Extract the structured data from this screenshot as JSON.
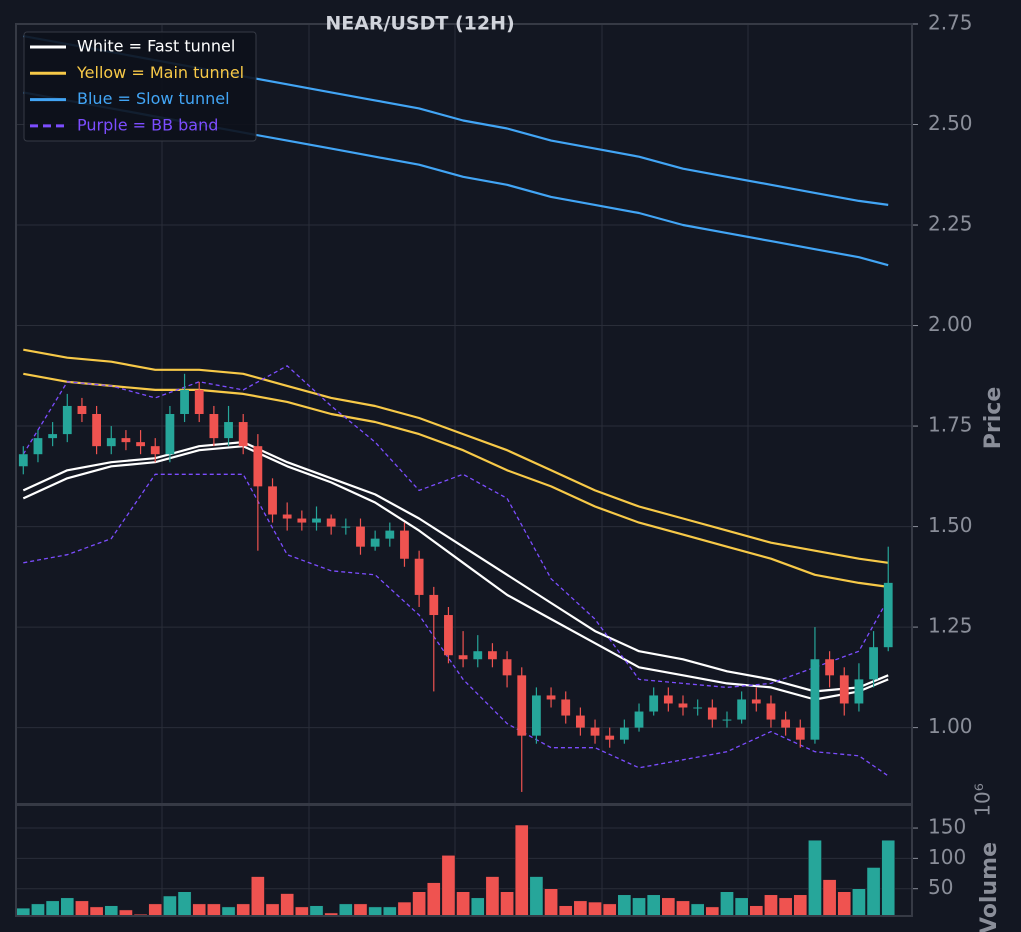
{
  "chart_data": {
    "type": "candlestick",
    "title": "NEAR/USDT (12H)",
    "y_label": "Price",
    "ylim": [
      0.81,
      2.75
    ],
    "yticks": [
      {
        "value": 1,
        "label": "1.00"
      },
      1.25,
      {
        "value": 1.5,
        "label": "1.50"
      },
      1.75,
      {
        "value": 2,
        "label": "2.00"
      },
      2.25,
      {
        "value": 2.5,
        "label": "2.50"
      },
      2.75
    ],
    "grid": true,
    "up_color": "#26a69a",
    "down_color": "#ef5350",
    "open": [
      1.65,
      1.68,
      1.72,
      1.73,
      1.8,
      1.78,
      1.7,
      1.72,
      1.71,
      1.7,
      1.68,
      1.78,
      1.84,
      1.78,
      1.72,
      1.76,
      1.7,
      1.6,
      1.53,
      1.52,
      1.51,
      1.52,
      1.5,
      1.5,
      1.45,
      1.47,
      1.49,
      1.42,
      1.33,
      1.28,
      1.18,
      1.17,
      1.19,
      1.17,
      1.13,
      0.98,
      1.08,
      1.07,
      1.03,
      1.0,
      0.98,
      0.97,
      1.0,
      1.04,
      1.08,
      1.06,
      1.05,
      1.05,
      1.02,
      1.02,
      1.07,
      1.06,
      1.02,
      1.0,
      0.97,
      1.17,
      1.13,
      1.06,
      1.12,
      1.2
    ],
    "high": [
      1.7,
      1.74,
      1.76,
      1.83,
      1.82,
      1.8,
      1.75,
      1.74,
      1.74,
      1.72,
      1.8,
      1.88,
      1.86,
      1.8,
      1.8,
      1.78,
      1.73,
      1.62,
      1.56,
      1.54,
      1.55,
      1.53,
      1.52,
      1.52,
      1.49,
      1.51,
      1.51,
      1.44,
      1.35,
      1.3,
      1.24,
      1.23,
      1.21,
      1.19,
      1.15,
      1.1,
      1.1,
      1.09,
      1.05,
      1.02,
      1.0,
      1.02,
      1.06,
      1.1,
      1.1,
      1.08,
      1.07,
      1.07,
      1.04,
      1.09,
      1.1,
      1.08,
      1.04,
      1.02,
      1.25,
      1.19,
      1.15,
      1.16,
      1.24,
      1.45
    ],
    "low": [
      1.63,
      1.66,
      1.7,
      1.71,
      1.76,
      1.68,
      1.68,
      1.69,
      1.68,
      1.66,
      1.66,
      1.76,
      1.76,
      1.7,
      1.7,
      1.68,
      1.44,
      1.51,
      1.49,
      1.49,
      1.49,
      1.48,
      1.48,
      1.43,
      1.44,
      1.45,
      1.4,
      1.3,
      1.09,
      1.16,
      1.15,
      1.15,
      1.15,
      1.1,
      0.84,
      0.96,
      1.05,
      1.01,
      0.98,
      0.96,
      0.95,
      0.96,
      0.99,
      1.03,
      1.04,
      1.03,
      1.03,
      1.0,
      1.0,
      1.01,
      1.04,
      1.0,
      0.98,
      0.95,
      0.96,
      1.1,
      1.03,
      1.04,
      1.1,
      1.19
    ],
    "close": [
      1.68,
      1.72,
      1.73,
      1.8,
      1.78,
      1.7,
      1.72,
      1.71,
      1.7,
      1.68,
      1.78,
      1.84,
      1.78,
      1.72,
      1.76,
      1.7,
      1.6,
      1.53,
      1.52,
      1.51,
      1.52,
      1.5,
      1.5,
      1.45,
      1.47,
      1.49,
      1.42,
      1.33,
      1.28,
      1.18,
      1.17,
      1.19,
      1.17,
      1.13,
      0.98,
      1.08,
      1.07,
      1.03,
      1.0,
      0.98,
      0.97,
      1.0,
      1.04,
      1.08,
      1.06,
      1.05,
      1.05,
      1.02,
      1.02,
      1.07,
      1.06,
      1.02,
      1.0,
      0.97,
      1.17,
      1.13,
      1.06,
      1.12,
      1.2,
      1.36
    ],
    "lines": {
      "x": [
        0,
        3,
        6,
        9,
        12,
        15,
        18,
        21,
        24,
        27,
        30,
        33,
        36,
        39,
        42,
        45,
        48,
        51,
        54,
        57,
        59
      ],
      "series": [
        {
          "name": "White = Fast tunnel",
          "color": "#ffffff",
          "dashed": false,
          "upper": [
            1.59,
            1.64,
            1.66,
            1.67,
            1.7,
            1.71,
            1.66,
            1.62,
            1.58,
            1.52,
            1.45,
            1.38,
            1.31,
            1.24,
            1.19,
            1.17,
            1.14,
            1.12,
            1.09,
            1.1,
            1.13
          ],
          "lower": [
            1.57,
            1.62,
            1.65,
            1.66,
            1.69,
            1.7,
            1.65,
            1.61,
            1.56,
            1.49,
            1.41,
            1.33,
            1.27,
            1.21,
            1.15,
            1.13,
            1.11,
            1.1,
            1.07,
            1.09,
            1.12
          ]
        },
        {
          "name": "Yellow = Main tunnel",
          "color": "#f7c948",
          "dashed": false,
          "upper": [
            1.94,
            1.92,
            1.91,
            1.89,
            1.89,
            1.88,
            1.85,
            1.82,
            1.8,
            1.77,
            1.73,
            1.69,
            1.64,
            1.59,
            1.55,
            1.52,
            1.49,
            1.46,
            1.44,
            1.42,
            1.41
          ],
          "lower": [
            1.88,
            1.86,
            1.85,
            1.84,
            1.84,
            1.83,
            1.81,
            1.78,
            1.76,
            1.73,
            1.69,
            1.64,
            1.6,
            1.55,
            1.51,
            1.48,
            1.45,
            1.42,
            1.38,
            1.36,
            1.35
          ]
        },
        {
          "name": "Blue = Slow tunnel",
          "color": "#42a5f5",
          "dashed": false,
          "upper": [
            2.72,
            2.7,
            2.68,
            2.66,
            2.64,
            2.62,
            2.6,
            2.58,
            2.56,
            2.54,
            2.51,
            2.49,
            2.46,
            2.44,
            2.42,
            2.39,
            2.37,
            2.35,
            2.33,
            2.31,
            2.3
          ],
          "lower": [
            2.58,
            2.56,
            2.54,
            2.52,
            2.5,
            2.48,
            2.46,
            2.44,
            2.42,
            2.4,
            2.37,
            2.35,
            2.32,
            2.3,
            2.28,
            2.25,
            2.23,
            2.21,
            2.19,
            2.17,
            2.15
          ]
        },
        {
          "name": "Purple = BB band",
          "color": "#7c4dff",
          "dashed": true,
          "upper": [
            1.68,
            1.86,
            1.85,
            1.82,
            1.86,
            1.84,
            1.9,
            1.8,
            1.71,
            1.59,
            1.63,
            1.57,
            1.37,
            1.27,
            1.12,
            1.11,
            1.1,
            1.11,
            1.15,
            1.19,
            1.32
          ],
          "lower": [
            1.41,
            1.43,
            1.47,
            1.63,
            1.63,
            1.63,
            1.43,
            1.39,
            1.38,
            1.28,
            1.12,
            1.01,
            0.95,
            0.95,
            0.9,
            0.92,
            0.94,
            0.99,
            0.94,
            0.93,
            0.88
          ]
        }
      ]
    },
    "volume": {
      "y_label": "Volume",
      "offset_label": "10⁶",
      "ylim": [
        5,
        188
      ],
      "yticks": [
        50,
        100,
        150
      ],
      "values": [
        18,
        25,
        30,
        35,
        30,
        20,
        22,
        15,
        8,
        25,
        38,
        45,
        25,
        25,
        20,
        25,
        70,
        25,
        42,
        20,
        22,
        10,
        25,
        25,
        20,
        20,
        28,
        45,
        60,
        105,
        45,
        35,
        70,
        45,
        155,
        70,
        50,
        22,
        30,
        28,
        25,
        40,
        35,
        40,
        35,
        30,
        25,
        20,
        45,
        35,
        22,
        40,
        35,
        40,
        130,
        65,
        45,
        50,
        85,
        130
      ]
    }
  }
}
